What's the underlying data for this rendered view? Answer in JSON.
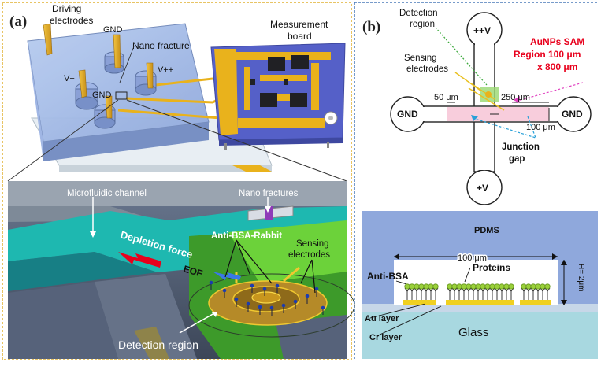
{
  "panel_a": {
    "label": "(a)",
    "driving_electrodes": [
      "Driving",
      "electrodes"
    ],
    "gnd_top": "GND",
    "nano_fracture": "Nano fracture",
    "v_plus": "V+",
    "v_plus_plus": "V++",
    "gnd_bottom": "GND",
    "measurement_board": [
      "Measurement",
      "board"
    ],
    "microfluidic_channel": "Microfluidic channel",
    "nano_fractures": "Nano fractures",
    "depletion_force": "Depletion force",
    "anti_bsa_rabbit": "Anti-BSA-Rabbit",
    "sensing_electrodes": [
      "Sensing",
      "electrodes"
    ],
    "eof": "EOF",
    "detection_region": "Detection region"
  },
  "panel_b": {
    "label": "(b)",
    "detection_region": [
      "Detection",
      "region"
    ],
    "pp_v": "++V",
    "aunps": [
      "AuNPs SAM",
      "Region 100 μm",
      "x 800 μm"
    ],
    "sensing_electrodes": [
      "Sensing",
      "electrodes"
    ],
    "dim_50": "50 μm",
    "dim_250": "250 μm",
    "gnd_left": "GND",
    "gnd_right": "GND",
    "dim_100": "100 μm",
    "junction_gap": [
      "Junction",
      "gap"
    ],
    "p_v": "+V",
    "pdms": "PDMS",
    "dim_100_width": "100 μm",
    "height_label": "H= 2μm",
    "anti_bsa": "Anti-BSA",
    "proteins": "Proteins",
    "au_layer": "Au layer",
    "cr_layer": "Cr layer",
    "glass": "Glass"
  },
  "colors": {
    "accent_red": "#e8001c",
    "gold": "#e9b21c",
    "teal": "#20b8b0",
    "green": "#6cd23a",
    "pdms_blue": "#8fa8dc",
    "glass": "#a8d8e0",
    "frame_a": "#e0b030",
    "frame_b": "#4a7ab8"
  }
}
